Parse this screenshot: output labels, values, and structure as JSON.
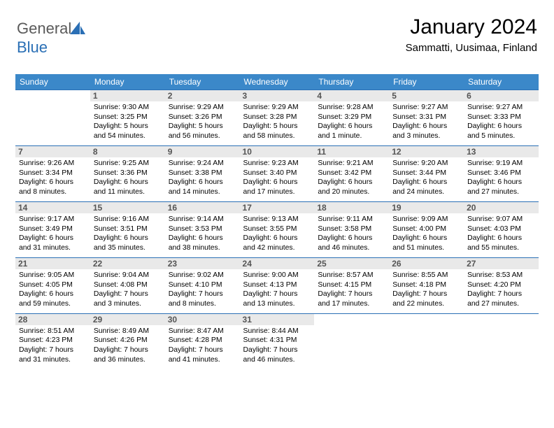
{
  "brand": {
    "part1": "General",
    "part2": "Blue"
  },
  "header": {
    "month_title": "January 2024",
    "location": "Sammatti, Uusimaa, Finland"
  },
  "colors": {
    "header_bg": "#3b88c9",
    "header_text": "#ffffff",
    "border": "#2a6fb5",
    "daynum_bg": "#e9e9e9",
    "daynum_text": "#555555",
    "logo_blue": "#2a6fb5",
    "logo_gray": "#5a5a5a"
  },
  "weekdays": [
    "Sunday",
    "Monday",
    "Tuesday",
    "Wednesday",
    "Thursday",
    "Friday",
    "Saturday"
  ],
  "weeks": [
    [
      {
        "day": "",
        "sunrise": "",
        "sunset": "",
        "daylight": ""
      },
      {
        "day": "1",
        "sunrise": "Sunrise: 9:30 AM",
        "sunset": "Sunset: 3:25 PM",
        "daylight": "Daylight: 5 hours and 54 minutes."
      },
      {
        "day": "2",
        "sunrise": "Sunrise: 9:29 AM",
        "sunset": "Sunset: 3:26 PM",
        "daylight": "Daylight: 5 hours and 56 minutes."
      },
      {
        "day": "3",
        "sunrise": "Sunrise: 9:29 AM",
        "sunset": "Sunset: 3:28 PM",
        "daylight": "Daylight: 5 hours and 58 minutes."
      },
      {
        "day": "4",
        "sunrise": "Sunrise: 9:28 AM",
        "sunset": "Sunset: 3:29 PM",
        "daylight": "Daylight: 6 hours and 1 minute."
      },
      {
        "day": "5",
        "sunrise": "Sunrise: 9:27 AM",
        "sunset": "Sunset: 3:31 PM",
        "daylight": "Daylight: 6 hours and 3 minutes."
      },
      {
        "day": "6",
        "sunrise": "Sunrise: 9:27 AM",
        "sunset": "Sunset: 3:33 PM",
        "daylight": "Daylight: 6 hours and 5 minutes."
      }
    ],
    [
      {
        "day": "7",
        "sunrise": "Sunrise: 9:26 AM",
        "sunset": "Sunset: 3:34 PM",
        "daylight": "Daylight: 6 hours and 8 minutes."
      },
      {
        "day": "8",
        "sunrise": "Sunrise: 9:25 AM",
        "sunset": "Sunset: 3:36 PM",
        "daylight": "Daylight: 6 hours and 11 minutes."
      },
      {
        "day": "9",
        "sunrise": "Sunrise: 9:24 AM",
        "sunset": "Sunset: 3:38 PM",
        "daylight": "Daylight: 6 hours and 14 minutes."
      },
      {
        "day": "10",
        "sunrise": "Sunrise: 9:23 AM",
        "sunset": "Sunset: 3:40 PM",
        "daylight": "Daylight: 6 hours and 17 minutes."
      },
      {
        "day": "11",
        "sunrise": "Sunrise: 9:21 AM",
        "sunset": "Sunset: 3:42 PM",
        "daylight": "Daylight: 6 hours and 20 minutes."
      },
      {
        "day": "12",
        "sunrise": "Sunrise: 9:20 AM",
        "sunset": "Sunset: 3:44 PM",
        "daylight": "Daylight: 6 hours and 24 minutes."
      },
      {
        "day": "13",
        "sunrise": "Sunrise: 9:19 AM",
        "sunset": "Sunset: 3:46 PM",
        "daylight": "Daylight: 6 hours and 27 minutes."
      }
    ],
    [
      {
        "day": "14",
        "sunrise": "Sunrise: 9:17 AM",
        "sunset": "Sunset: 3:49 PM",
        "daylight": "Daylight: 6 hours and 31 minutes."
      },
      {
        "day": "15",
        "sunrise": "Sunrise: 9:16 AM",
        "sunset": "Sunset: 3:51 PM",
        "daylight": "Daylight: 6 hours and 35 minutes."
      },
      {
        "day": "16",
        "sunrise": "Sunrise: 9:14 AM",
        "sunset": "Sunset: 3:53 PM",
        "daylight": "Daylight: 6 hours and 38 minutes."
      },
      {
        "day": "17",
        "sunrise": "Sunrise: 9:13 AM",
        "sunset": "Sunset: 3:55 PM",
        "daylight": "Daylight: 6 hours and 42 minutes."
      },
      {
        "day": "18",
        "sunrise": "Sunrise: 9:11 AM",
        "sunset": "Sunset: 3:58 PM",
        "daylight": "Daylight: 6 hours and 46 minutes."
      },
      {
        "day": "19",
        "sunrise": "Sunrise: 9:09 AM",
        "sunset": "Sunset: 4:00 PM",
        "daylight": "Daylight: 6 hours and 51 minutes."
      },
      {
        "day": "20",
        "sunrise": "Sunrise: 9:07 AM",
        "sunset": "Sunset: 4:03 PM",
        "daylight": "Daylight: 6 hours and 55 minutes."
      }
    ],
    [
      {
        "day": "21",
        "sunrise": "Sunrise: 9:05 AM",
        "sunset": "Sunset: 4:05 PM",
        "daylight": "Daylight: 6 hours and 59 minutes."
      },
      {
        "day": "22",
        "sunrise": "Sunrise: 9:04 AM",
        "sunset": "Sunset: 4:08 PM",
        "daylight": "Daylight: 7 hours and 3 minutes."
      },
      {
        "day": "23",
        "sunrise": "Sunrise: 9:02 AM",
        "sunset": "Sunset: 4:10 PM",
        "daylight": "Daylight: 7 hours and 8 minutes."
      },
      {
        "day": "24",
        "sunrise": "Sunrise: 9:00 AM",
        "sunset": "Sunset: 4:13 PM",
        "daylight": "Daylight: 7 hours and 13 minutes."
      },
      {
        "day": "25",
        "sunrise": "Sunrise: 8:57 AM",
        "sunset": "Sunset: 4:15 PM",
        "daylight": "Daylight: 7 hours and 17 minutes."
      },
      {
        "day": "26",
        "sunrise": "Sunrise: 8:55 AM",
        "sunset": "Sunset: 4:18 PM",
        "daylight": "Daylight: 7 hours and 22 minutes."
      },
      {
        "day": "27",
        "sunrise": "Sunrise: 8:53 AM",
        "sunset": "Sunset: 4:20 PM",
        "daylight": "Daylight: 7 hours and 27 minutes."
      }
    ],
    [
      {
        "day": "28",
        "sunrise": "Sunrise: 8:51 AM",
        "sunset": "Sunset: 4:23 PM",
        "daylight": "Daylight: 7 hours and 31 minutes."
      },
      {
        "day": "29",
        "sunrise": "Sunrise: 8:49 AM",
        "sunset": "Sunset: 4:26 PM",
        "daylight": "Daylight: 7 hours and 36 minutes."
      },
      {
        "day": "30",
        "sunrise": "Sunrise: 8:47 AM",
        "sunset": "Sunset: 4:28 PM",
        "daylight": "Daylight: 7 hours and 41 minutes."
      },
      {
        "day": "31",
        "sunrise": "Sunrise: 8:44 AM",
        "sunset": "Sunset: 4:31 PM",
        "daylight": "Daylight: 7 hours and 46 minutes."
      },
      {
        "day": "",
        "sunrise": "",
        "sunset": "",
        "daylight": ""
      },
      {
        "day": "",
        "sunrise": "",
        "sunset": "",
        "daylight": ""
      },
      {
        "day": "",
        "sunrise": "",
        "sunset": "",
        "daylight": ""
      }
    ]
  ]
}
